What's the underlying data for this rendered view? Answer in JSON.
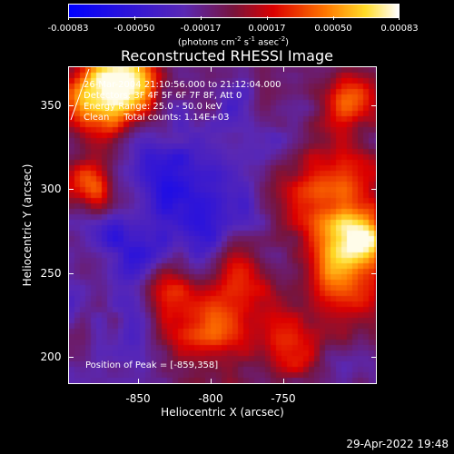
{
  "colorbar": {
    "tick_labels": [
      "-0.00083",
      "-0.00050",
      "-0.00017",
      "0.00017",
      "0.00050",
      "0.00083"
    ],
    "units_prefix": "(photons cm",
    "units_sup1": "-2",
    "units_mid1": " s",
    "units_sup2": "-1",
    "units_mid2": " asec",
    "units_sup3": "-2",
    "units_suffix": ")",
    "range": [
      -0.00083,
      0.00083
    ]
  },
  "plot": {
    "title": "Reconstructed RHESSI Image",
    "info_time": "26-Mar-2004 21:10:56.000 to 21:12:04.000",
    "info_detectors": "Detectors: 3F 4F 5F 6F 7F 8F, Att 0",
    "info_energy": "Energy Range: 25.0 - 50.0 keV",
    "info_clean": "Clean     Total counts: 1.14E+03",
    "peak_label": "Position of Peak = [-859,358]",
    "x_title": "Heliocentric X (arcsec)",
    "y_title": "Heliocentric Y (arcsec)",
    "x_ticks": [
      "-850",
      "-800",
      "-750"
    ],
    "y_ticks": [
      "350",
      "300",
      "250",
      "200"
    ],
    "x_tick_values": [
      -850,
      -800,
      -750
    ],
    "y_tick_values": [
      350,
      300,
      250,
      200
    ],
    "x_range": [
      -898,
      -686
    ],
    "y_range": [
      184,
      373
    ]
  },
  "footer": {
    "datestamp": "29-Apr-2022 19:48"
  }
}
